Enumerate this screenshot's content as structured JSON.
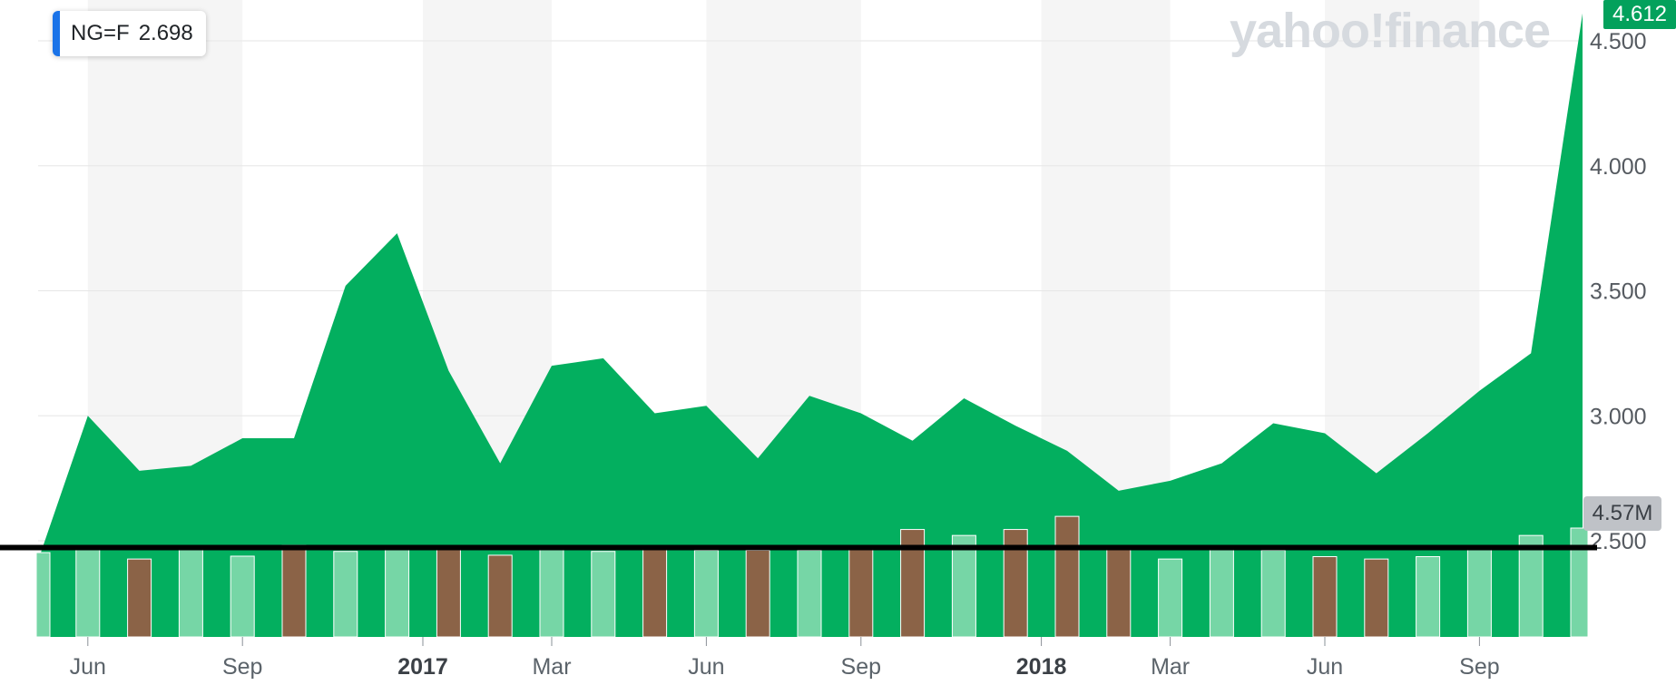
{
  "legend": {
    "symbol": "NG=F",
    "value": "2.698",
    "color": "#1a73e8"
  },
  "watermark": "yahoo!finance",
  "last_price_tag": "4.612",
  "volume_tag": "4.57M",
  "colors": {
    "area": "#03af5f",
    "volume_up": "#76d6a6",
    "volume_down": "#8b6347",
    "band": "#f5f5f5",
    "reference_line": "#000000"
  },
  "chart_data": {
    "type": "area",
    "series": [
      {
        "values": [
          2.4,
          3.0,
          2.78,
          2.8,
          2.91,
          2.91,
          3.52,
          3.73,
          3.18,
          2.81,
          3.2,
          3.23,
          3.01,
          3.04,
          2.83,
          3.08,
          3.01,
          2.9,
          3.07,
          2.96,
          2.86,
          2.7,
          2.74,
          2.81,
          2.97,
          2.93,
          2.77,
          2.93,
          3.1,
          3.25,
          4.61
        ]
      }
    ],
    "volume": {
      "unit": "M",
      "values": [
        3.54,
        3.7,
        3.27,
        3.7,
        3.39,
        3.85,
        3.59,
        3.7,
        3.7,
        3.43,
        3.7,
        3.59,
        3.8,
        3.64,
        3.64,
        3.64,
        3.7,
        4.51,
        4.26,
        4.51,
        5.06,
        3.7,
        3.27,
        3.75,
        3.64,
        3.37,
        3.27,
        3.37,
        3.7,
        4.26,
        4.57
      ],
      "direction": [
        "up",
        "up",
        "down",
        "up",
        "up",
        "down",
        "up",
        "up",
        "down",
        "down",
        "up",
        "up",
        "down",
        "up",
        "down",
        "up",
        "down",
        "down",
        "up",
        "down",
        "down",
        "down",
        "up",
        "up",
        "up",
        "down",
        "down",
        "up",
        "up",
        "up",
        "up"
      ]
    },
    "yaxis": {
      "ticks": [
        "2.500",
        "3.000",
        "3.500",
        "4.000",
        "4.500"
      ],
      "range": [
        2.1,
        4.65
      ]
    },
    "xaxis": {
      "ticks": [
        {
          "label": "Jun",
          "index": 1
        },
        {
          "label": "Sep",
          "index": 4
        },
        {
          "label": "2017",
          "index": 7.5,
          "bold": true
        },
        {
          "label": "Mar",
          "index": 10
        },
        {
          "label": "Jun",
          "index": 13
        },
        {
          "label": "Sep",
          "index": 16
        },
        {
          "label": "2018",
          "index": 19.5,
          "bold": true
        },
        {
          "label": "Mar",
          "index": 22
        },
        {
          "label": "Jun",
          "index": 25
        },
        {
          "label": "Sep",
          "index": 28
        }
      ]
    },
    "reference_line": 2.52,
    "last_value": 4.612
  }
}
